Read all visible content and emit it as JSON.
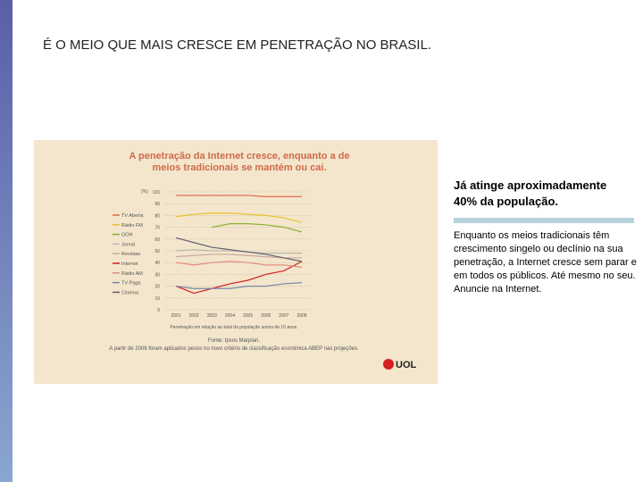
{
  "slide": {
    "title": "É O MEIO QUE MAIS CRESCE EM PENETRAÇÃO NO BRASIL.",
    "highlight": "Já atinge aproximadamente 40% da população.",
    "body": "Enquanto os meios tradicionais têm crescimento singelo ou declínio na sua penetração, a Internet cresce sem parar e em todos os públicos. Até mesmo no seu. Anuncie na Internet.",
    "logo": "UOL"
  },
  "chart_data": {
    "type": "line",
    "title": "A penetração da Internet cresce, enquanto a de meios tradicionais se mantém ou cai.",
    "y_label": "(%)",
    "x_label": "Penetração em relação ao total da população acima de 10 anos.",
    "source": "Fonte: Ipsos Marplan.",
    "note": "A partir de 2006 foram aplicados pesos no novo critério de classificação econômica ABEP nas projeções.",
    "categories": [
      "2001",
      "2002",
      "2003",
      "2004",
      "2005",
      "2006",
      "2007",
      "2008"
    ],
    "ylim": [
      0,
      100
    ],
    "yticks": [
      0,
      10,
      20,
      30,
      40,
      50,
      60,
      70,
      80,
      90,
      100
    ],
    "grid": true,
    "series": [
      {
        "name": "TV Aberta",
        "color": "#e06a48",
        "values": [
          97,
          97,
          97,
          97,
          97,
          96,
          96,
          96
        ]
      },
      {
        "name": "Rádio FM",
        "color": "#e8c22a",
        "values": [
          79,
          81,
          82,
          82,
          81,
          80,
          78,
          74
        ]
      },
      {
        "name": "OOH",
        "color": "#8db034",
        "values": [
          null,
          null,
          70,
          73,
          73,
          72,
          70,
          66
        ]
      },
      {
        "name": "Jornal",
        "color": "#b8b8b0",
        "values": [
          50,
          51,
          50,
          50,
          49,
          48,
          48,
          48
        ]
      },
      {
        "name": "Revistas",
        "color": "#c8a8a0",
        "values": [
          45,
          46,
          47,
          47,
          46,
          45,
          44,
          44
        ]
      },
      {
        "name": "Internet",
        "color": "#d42020",
        "values": [
          20,
          14,
          18,
          22,
          25,
          30,
          33,
          41
        ]
      },
      {
        "name": "Rádio AM",
        "color": "#e48a80",
        "values": [
          40,
          38,
          40,
          41,
          40,
          38,
          38,
          36
        ]
      },
      {
        "name": "TV Paga",
        "color": "#7888a8",
        "values": [
          20,
          18,
          18,
          18,
          20,
          20,
          22,
          23
        ]
      },
      {
        "name": "Cinema",
        "color": "#606070",
        "values": [
          61,
          57,
          53,
          51,
          49,
          47,
          44,
          41
        ]
      }
    ]
  }
}
